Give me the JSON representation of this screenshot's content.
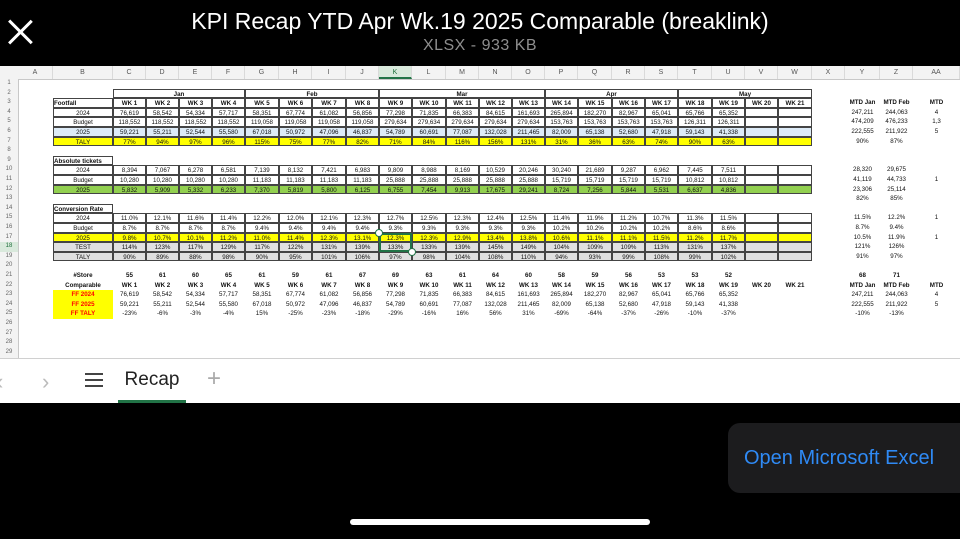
{
  "header": {
    "title": "KPI Recap YTD Apr Wk.19 2025 Comparable (breaklink)",
    "subtitle": "XLSX - 933 KB",
    "close_icon": "close-icon"
  },
  "column_letters": [
    "A",
    "B",
    "C",
    "D",
    "E",
    "F",
    "G",
    "H",
    "I",
    "J",
    "K",
    "L",
    "M",
    "N",
    "O",
    "P",
    "Q",
    "R",
    "S",
    "T",
    "U",
    "V",
    "W",
    "X",
    "Y",
    "Z",
    "AA"
  ],
  "selected_column": "K",
  "row_numbers": [
    "1",
    "2",
    "3",
    "4",
    "5",
    "6",
    "7",
    "8",
    "9",
    "10",
    "11",
    "12",
    "13",
    "14",
    "15",
    "16",
    "17",
    "18",
    "19",
    "20",
    "21",
    "22",
    "23",
    "24",
    "25",
    "26",
    "27",
    "28",
    "29"
  ],
  "selected_row": "18",
  "months": [
    "Jan",
    "Feb",
    "Mar",
    "Apr",
    "May"
  ],
  "weeks": [
    "WK 1",
    "WK 2",
    "WK 3",
    "WK 4",
    "WK 5",
    "WK 6",
    "WK 7",
    "WK 8",
    "WK 9",
    "WK 10",
    "WK 11",
    "WK 12",
    "WK 13",
    "WK 14",
    "WK 15",
    "WK 16",
    "WK 17",
    "WK 18",
    "WK 19",
    "WK 20",
    "WK 21"
  ],
  "mtd_headers": [
    "MTD Jan",
    "MTD Feb",
    "MTD"
  ],
  "footfall": {
    "title": "Footfall",
    "rows": [
      {
        "label": "2024",
        "cells": [
          "76,619",
          "58,542",
          "54,334",
          "57,717",
          "58,351",
          "67,774",
          "61,082",
          "56,856",
          "77,298",
          "71,835",
          "66,383",
          "84,615",
          "161,693",
          "265,894",
          "182,270",
          "82,967",
          "65,041",
          "65,766",
          "65,352",
          "",
          ""
        ],
        "mtd": [
          "247,211",
          "244,063",
          "4"
        ]
      },
      {
        "label": "Budget",
        "cells": [
          "118,552",
          "118,552",
          "118,552",
          "118,552",
          "119,058",
          "119,058",
          "119,058",
          "119,058",
          "279,634",
          "279,634",
          "279,634",
          "279,634",
          "279,634",
          "153,763",
          "153,763",
          "153,763",
          "153,763",
          "126,311",
          "126,311",
          "",
          ""
        ],
        "mtd": [
          "474,209",
          "476,233",
          "1,3"
        ]
      },
      {
        "label": "2025",
        "cells": [
          "59,221",
          "55,211",
          "52,544",
          "55,580",
          "67,018",
          "50,972",
          "47,096",
          "46,837",
          "54,789",
          "60,691",
          "77,087",
          "132,028",
          "211,465",
          "82,009",
          "65,138",
          "52,680",
          "47,918",
          "59,143",
          "41,338",
          "",
          ""
        ],
        "mtd": [
          "222,555",
          "211,922",
          "5"
        ]
      },
      {
        "label": "TALY",
        "cells": [
          "77%",
          "94%",
          "97%",
          "96%",
          "115%",
          "75%",
          "77%",
          "82%",
          "71%",
          "84%",
          "116%",
          "156%",
          "131%",
          "31%",
          "36%",
          "63%",
          "74%",
          "90%",
          "63%",
          "",
          ""
        ],
        "mtd": [
          "90%",
          "87%",
          ""
        ]
      }
    ]
  },
  "tickets": {
    "title": "Absolute tickets",
    "rows": [
      {
        "label": "2024",
        "cells": [
          "8,394",
          "7,067",
          "6,278",
          "6,581",
          "7,139",
          "8,132",
          "7,421",
          "6,983",
          "9,809",
          "8,988",
          "8,169",
          "10,529",
          "20,246",
          "30,240",
          "21,689",
          "9,287",
          "6,962",
          "7,445",
          "7,511",
          "",
          ""
        ],
        "mtd": [
          "28,320",
          "29,675",
          ""
        ]
      },
      {
        "label": "Budget",
        "cells": [
          "10,280",
          "10,280",
          "10,280",
          "10,280",
          "11,183",
          "11,183",
          "11,183",
          "11,183",
          "25,888",
          "25,888",
          "25,888",
          "25,888",
          "25,888",
          "15,719",
          "15,719",
          "15,719",
          "15,719",
          "10,812",
          "10,812",
          "",
          ""
        ],
        "mtd": [
          "41,119",
          "44,733",
          "1"
        ]
      },
      {
        "label": "2025",
        "cells": [
          "5,832",
          "5,909",
          "5,332",
          "6,233",
          "7,370",
          "5,819",
          "5,800",
          "6,125",
          "6,755",
          "7,454",
          "9,913",
          "17,675",
          "29,241",
          "8,724",
          "7,256",
          "5,844",
          "5,531",
          "6,637",
          "4,836",
          "",
          ""
        ],
        "mtd": [
          "23,306",
          "25,114",
          ""
        ]
      },
      {
        "label": "",
        "cells": [
          "",
          "",
          "",
          "",
          "",
          "",
          "",
          "",
          "",
          "",
          "",
          "",
          "",
          "",
          "",
          "",
          "",
          "",
          "",
          "",
          ""
        ],
        "mtd": [
          "82%",
          "85%",
          ""
        ]
      }
    ]
  },
  "conversion": {
    "title": "Conversion Rate",
    "rows": [
      {
        "label": "2024",
        "cells": [
          "11.0%",
          "12.1%",
          "11.6%",
          "11.4%",
          "12.2%",
          "12.0%",
          "12.1%",
          "12.3%",
          "12.7%",
          "12.5%",
          "12.3%",
          "12.4%",
          "12.5%",
          "11.4%",
          "11.9%",
          "11.2%",
          "10.7%",
          "11.3%",
          "11.5%",
          "",
          ""
        ],
        "mtd": [
          "11.5%",
          "12.2%",
          "1"
        ]
      },
      {
        "label": "Budget",
        "cells": [
          "8.7%",
          "8.7%",
          "8.7%",
          "8.7%",
          "9.4%",
          "9.4%",
          "9.4%",
          "9.4%",
          "9.3%",
          "9.3%",
          "9.3%",
          "9.3%",
          "9.3%",
          "10.2%",
          "10.2%",
          "10.2%",
          "10.2%",
          "8.6%",
          "8.6%",
          "",
          ""
        ],
        "mtd": [
          "8.7%",
          "9.4%",
          ""
        ]
      },
      {
        "label": "2025",
        "cells": [
          "9.8%",
          "10.7%",
          "10.1%",
          "11.2%",
          "11.0%",
          "11.4%",
          "12.3%",
          "13.1%",
          "12.3%",
          "12.3%",
          "12.9%",
          "13.4%",
          "13.8%",
          "10.6%",
          "11.1%",
          "11.1%",
          "11.5%",
          "11.2%",
          "11.7%",
          "",
          ""
        ],
        "mtd": [
          "10.5%",
          "11.9%",
          "1"
        ]
      },
      {
        "label": "TEST",
        "cells": [
          "114%",
          "123%",
          "117%",
          "129%",
          "117%",
          "122%",
          "131%",
          "139%",
          "133%",
          "133%",
          "139%",
          "145%",
          "149%",
          "104%",
          "109%",
          "109%",
          "113%",
          "131%",
          "137%",
          "",
          ""
        ],
        "mtd": [
          "121%",
          "126%",
          ""
        ]
      },
      {
        "label": "TALY",
        "cells": [
          "90%",
          "89%",
          "88%",
          "98%",
          "90%",
          "95%",
          "101%",
          "106%",
          "97%",
          "98%",
          "104%",
          "108%",
          "110%",
          "94%",
          "93%",
          "99%",
          "108%",
          "99%",
          "102%",
          "",
          ""
        ],
        "mtd": [
          "91%",
          "97%",
          ""
        ]
      }
    ]
  },
  "comparable": {
    "title": "#Store",
    "subtitle": "Comparable",
    "store_counts": [
      "55",
      "61",
      "60",
      "65",
      "61",
      "59",
      "61",
      "67",
      "69",
      "63",
      "61",
      "64",
      "60",
      "58",
      "59",
      "56",
      "53",
      "53",
      "52",
      "",
      ""
    ],
    "mtd_store_counts": [
      "68",
      "71",
      ""
    ],
    "rows": [
      {
        "label": "FF 2024",
        "cells": [
          "76,619",
          "58,542",
          "54,334",
          "57,717",
          "58,351",
          "67,774",
          "61,082",
          "56,856",
          "77,298",
          "71,835",
          "66,383",
          "84,615",
          "161,693",
          "265,894",
          "182,270",
          "82,967",
          "65,041",
          "65,766",
          "65,352",
          "",
          ""
        ],
        "mtd": [
          "247,211",
          "244,063",
          "4"
        ]
      },
      {
        "label": "FF 2025",
        "cells": [
          "59,221",
          "55,211",
          "52,544",
          "55,580",
          "67,018",
          "50,972",
          "47,096",
          "46,837",
          "54,789",
          "60,691",
          "77,087",
          "132,028",
          "211,465",
          "82,009",
          "65,138",
          "52,680",
          "47,918",
          "59,143",
          "41,338",
          "",
          ""
        ],
        "mtd": [
          "222,555",
          "211,922",
          "5"
        ]
      },
      {
        "label": "FF TALY",
        "cells": [
          "-23%",
          "-6%",
          "-3%",
          "-4%",
          "15%",
          "-25%",
          "-23%",
          "-18%",
          "-29%",
          "-16%",
          "16%",
          "56%",
          "31%",
          "-69%",
          "-64%",
          "-37%",
          "-26%",
          "-10%",
          "-37%",
          "",
          ""
        ],
        "mtd": [
          "-10%",
          "-13%",
          ""
        ]
      }
    ]
  },
  "bottom_bar": {
    "tab_label": "Recap",
    "prev_icon": "chevron-left-icon",
    "next_icon": "chevron-right-icon",
    "menu_icon": "menu-icon",
    "add_icon": "plus-icon"
  },
  "open_button": "Open Microsoft Excel",
  "colors": {
    "yellow": "#ffff00",
    "light_blue": "#ddebf7",
    "green": "#92d050",
    "grey": "#e0e0e0",
    "label_red": "#ff0000",
    "accent": "#217346",
    "link_blue": "#2f8af5"
  }
}
